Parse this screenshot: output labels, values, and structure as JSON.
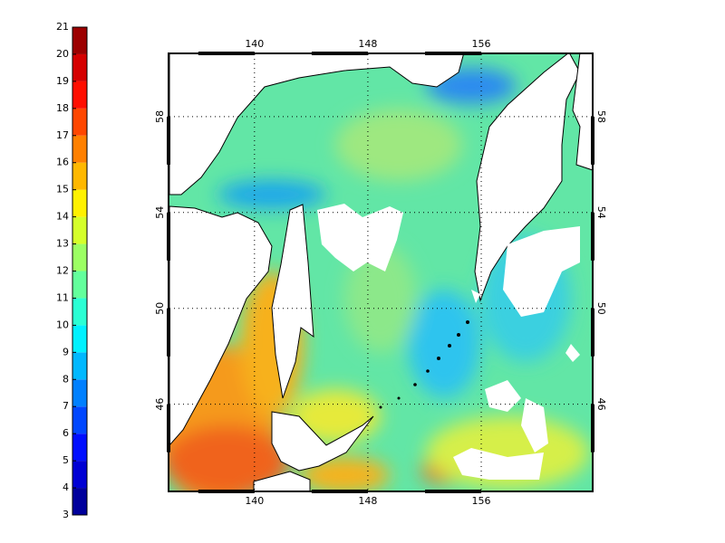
{
  "colorbar": {
    "ticks": [
      3,
      4,
      5,
      6,
      7,
      8,
      9,
      10,
      11,
      12,
      13,
      14,
      15,
      16,
      17,
      18,
      19,
      20,
      21
    ]
  },
  "map": {
    "lon_range": [
      134,
      163.8
    ],
    "lat_range": [
      42.4,
      60.6
    ],
    "lon_ticks": [
      140,
      148,
      156
    ],
    "lat_ticks": [
      46,
      50,
      54,
      58
    ]
  }
}
